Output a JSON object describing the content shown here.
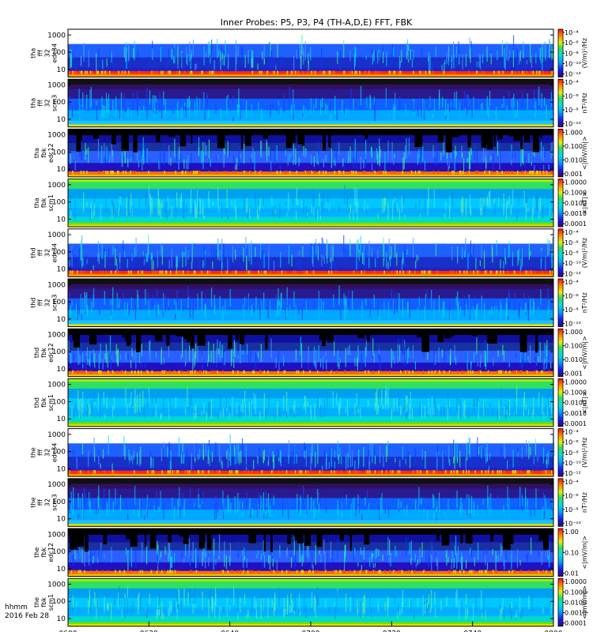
{
  "chart_data": {
    "type": "heatmap",
    "title": "Inner Probes: P5, P3, P4 (TH-A,D,E) FFT, FBK",
    "x_axis": {
      "unit_label": "hhmm",
      "date_label": "2016 Feb 28",
      "ticks": [
        "0600",
        "0620",
        "0640",
        "0700",
        "0720",
        "0740",
        "0800"
      ]
    },
    "y_ticks": [
      "1000",
      "100",
      "10"
    ],
    "panels": [
      {
        "probe": "tha",
        "label": [
          "tha",
          "fff",
          "32",
          "edc34"
        ],
        "kind": "fff_e",
        "colorbar": {
          "label": "(V/m)²/Hz",
          "ticks": [
            "10⁻⁴",
            "10⁻⁶",
            "10⁻⁸",
            "10⁻¹⁰",
            "10⁻¹²"
          ]
        }
      },
      {
        "probe": "tha",
        "label": [
          "tha",
          "fff",
          "32",
          "scm3"
        ],
        "kind": "fff_b",
        "colorbar": {
          "label": "nT²/Hz",
          "ticks": [
            "10⁻⁴",
            "10⁻⁶",
            "10⁻⁸",
            "10⁻¹⁰"
          ]
        }
      },
      {
        "probe": "tha",
        "label": [
          "tha",
          "fbk",
          "edc12"
        ],
        "kind": "fbk_e",
        "colorbar": {
          "label": "<|mV/m|>",
          "ticks": [
            "1.000",
            "0.100",
            "0.010",
            "0.001"
          ]
        }
      },
      {
        "probe": "tha",
        "label": [
          "tha",
          "fbk",
          "scm1"
        ],
        "kind": "fbk_b",
        "colorbar": {
          "label": "<|nT|>",
          "ticks": [
            "1.0000",
            "0.1000",
            "0.0100",
            "0.0010",
            "0.0001"
          ]
        }
      },
      {
        "probe": "thd",
        "label": [
          "thd",
          "fff",
          "32",
          "edc34"
        ],
        "kind": "fff_e",
        "colorbar": {
          "label": "(V/m)²/Hz",
          "ticks": [
            "10⁻⁴",
            "10⁻⁶",
            "10⁻⁸",
            "10⁻¹⁰",
            "10⁻¹²"
          ]
        }
      },
      {
        "probe": "thd",
        "label": [
          "thd",
          "fff",
          "32",
          "scm3"
        ],
        "kind": "fff_b",
        "colorbar": {
          "label": "nT²/Hz",
          "ticks": [
            "10⁻⁴",
            "10⁻⁶",
            "10⁻⁸",
            "10⁻¹⁰"
          ]
        }
      },
      {
        "probe": "thd",
        "label": [
          "thd",
          "fbk",
          "edc12"
        ],
        "kind": "fbk_e",
        "colorbar": {
          "label": "<|mV/m|>",
          "ticks": [
            "1.000",
            "0.100",
            "0.010",
            "0.001"
          ]
        }
      },
      {
        "probe": "thd",
        "label": [
          "thd",
          "fbk",
          "scm1"
        ],
        "kind": "fbk_b",
        "colorbar": {
          "label": "<|nT|>",
          "ticks": [
            "1.0000",
            "0.1000",
            "0.0100",
            "0.0010",
            "0.0001"
          ]
        }
      },
      {
        "probe": "the",
        "label": [
          "the",
          "fff",
          "32",
          "edc34"
        ],
        "kind": "fff_e",
        "colorbar": {
          "label": "(V/m)²/Hz",
          "ticks": [
            "10⁻⁴",
            "10⁻⁶",
            "10⁻⁸",
            "10⁻¹⁰",
            "10⁻¹²"
          ]
        }
      },
      {
        "probe": "the",
        "label": [
          "the",
          "fff",
          "32",
          "scm3"
        ],
        "kind": "fff_b",
        "colorbar": {
          "label": "nT²/Hz",
          "ticks": [
            "10⁻⁴",
            "10⁻⁶",
            "10⁻⁸",
            "10⁻¹⁰"
          ]
        }
      },
      {
        "probe": "the",
        "label": [
          "the",
          "fbk",
          "edc12"
        ],
        "kind": "fbk_e",
        "colorbar": {
          "label": "<|mV/m|>",
          "ticks": [
            "1.00",
            "0.10",
            "0.01"
          ]
        }
      },
      {
        "probe": "the",
        "label": [
          "the",
          "fbk",
          "scm1"
        ],
        "kind": "fbk_b",
        "colorbar": {
          "label": "<|mV/m|>",
          "ticks": [
            "1.0000",
            "0.1000",
            "0.0100",
            "0.0010",
            "0.0001"
          ]
        }
      }
    ]
  }
}
